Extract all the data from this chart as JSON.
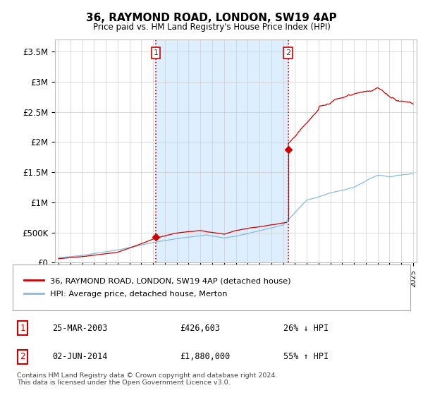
{
  "title": "36, RAYMOND ROAD, LONDON, SW19 4AP",
  "subtitle": "Price paid vs. HM Land Registry's House Price Index (HPI)",
  "property_label": "36, RAYMOND ROAD, LONDON, SW19 4AP (detached house)",
  "hpi_label": "HPI: Average price, detached house, Merton",
  "transaction1_date": "25-MAR-2003",
  "transaction1_price": "£426,603",
  "transaction1_note": "26% ↓ HPI",
  "transaction2_date": "02-JUN-2014",
  "transaction2_price": "£1,880,000",
  "transaction2_note": "55% ↑ HPI",
  "footer": "Contains HM Land Registry data © Crown copyright and database right 2024.\nThis data is licensed under the Open Government Licence v3.0.",
  "property_color": "#cc0000",
  "hpi_color": "#88bbdd",
  "shade_color": "#ddeeff",
  "vline_color": "#cc0000",
  "background_color": "#ffffff",
  "grid_color": "#cccccc",
  "ylim": [
    0,
    3700000
  ],
  "yticks": [
    0,
    500000,
    1000000,
    1500000,
    2000000,
    2500000,
    3000000,
    3500000
  ],
  "ytick_labels": [
    "£0",
    "£500K",
    "£1M",
    "£1.5M",
    "£2M",
    "£2.5M",
    "£3M",
    "£3.5M"
  ],
  "year_start": 1995,
  "year_end": 2025,
  "transaction1_year": 2003.23,
  "transaction2_year": 2014.42,
  "transaction1_value": 426603,
  "transaction2_value": 1880000
}
